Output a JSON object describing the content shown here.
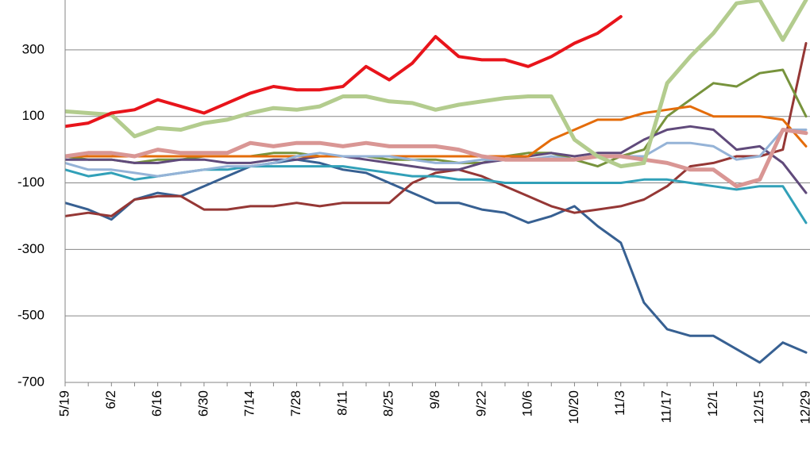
{
  "chart_data": {
    "type": "line",
    "categories": [
      "5/19",
      null,
      "6/2",
      null,
      "6/16",
      null,
      "6/30",
      null,
      "7/14",
      null,
      "7/28",
      null,
      "8/11",
      null,
      "8/25",
      null,
      "9/8",
      null,
      "9/22",
      null,
      "10/6",
      null,
      "10/20",
      null,
      "11/3",
      null,
      "11/17",
      null,
      "12/1",
      null,
      "12/15",
      null,
      "12/29"
    ],
    "ylim": [
      -700,
      450
    ],
    "yticks": [
      -700,
      -500,
      -300,
      -100,
      100,
      300
    ],
    "grid": true,
    "series": [
      {
        "color": "#376092",
        "width": 3,
        "values": [
          -160,
          -180,
          -210,
          -150,
          -130,
          -140,
          -110,
          -80,
          -50,
          -40,
          -30,
          -40,
          -60,
          -70,
          -100,
          -130,
          -160,
          -160,
          -180,
          -190,
          -220,
          -200,
          -170,
          -230,
          -280,
          -460,
          -540,
          -560,
          -560,
          -600,
          -640,
          -580,
          -610
        ]
      },
      {
        "color": "#953735",
        "width": 3,
        "values": [
          -200,
          -190,
          -200,
          -150,
          -140,
          -140,
          -180,
          -180,
          -170,
          -170,
          -160,
          -170,
          -160,
          -160,
          -160,
          -100,
          -70,
          -60,
          -80,
          -110,
          -140,
          -170,
          -190,
          -180,
          -170,
          -150,
          -110,
          -50,
          -40,
          -20,
          -20,
          0,
          320
        ]
      },
      {
        "color": "#77933c",
        "width": 3,
        "values": [
          -20,
          -30,
          -30,
          -40,
          -30,
          -30,
          -20,
          -20,
          -20,
          -10,
          -10,
          -20,
          -20,
          -20,
          -30,
          -30,
          -30,
          -40,
          -40,
          -20,
          -10,
          -10,
          -30,
          -50,
          -20,
          0,
          100,
          150,
          200,
          190,
          230,
          240,
          100
        ]
      },
      {
        "color": "#604a7b",
        "width": 3,
        "values": [
          -30,
          -30,
          -30,
          -40,
          -40,
          -30,
          -30,
          -40,
          -40,
          -30,
          -30,
          -20,
          -20,
          -30,
          -40,
          -50,
          -60,
          -60,
          -40,
          -30,
          -20,
          -10,
          -20,
          -10,
          -10,
          30,
          60,
          70,
          60,
          0,
          10,
          -40,
          -130
        ]
      },
      {
        "color": "#31a0b8",
        "width": 3,
        "values": [
          -60,
          -80,
          -70,
          -90,
          -80,
          -70,
          -60,
          -60,
          -50,
          -50,
          -50,
          -50,
          -50,
          -60,
          -70,
          -80,
          -80,
          -90,
          -90,
          -100,
          -100,
          -100,
          -100,
          -100,
          -100,
          -90,
          -90,
          -100,
          -110,
          -120,
          -110,
          -110,
          -220
        ]
      },
      {
        "color": "#e46c0a",
        "width": 3,
        "values": [
          -20,
          -20,
          -20,
          -20,
          -20,
          -20,
          -20,
          -20,
          -20,
          -20,
          -20,
          -20,
          -20,
          -20,
          -20,
          -20,
          -20,
          -20,
          -20,
          -20,
          -20,
          30,
          60,
          90,
          90,
          110,
          120,
          130,
          100,
          100,
          100,
          90,
          10
        ]
      },
      {
        "color": "#95b3d7",
        "width": 3,
        "values": [
          -40,
          -60,
          -60,
          -70,
          -80,
          -70,
          -60,
          -50,
          -50,
          -40,
          -20,
          -10,
          -20,
          -20,
          -20,
          -30,
          -40,
          -40,
          -30,
          -30,
          -30,
          -20,
          -30,
          -20,
          -20,
          -20,
          20,
          20,
          10,
          -30,
          -20,
          60,
          60
        ]
      },
      {
        "color": "#d99694",
        "width": 5,
        "values": [
          -20,
          -10,
          -10,
          -20,
          0,
          -10,
          -10,
          -10,
          20,
          10,
          20,
          20,
          10,
          20,
          10,
          10,
          10,
          0,
          -20,
          -30,
          -30,
          -30,
          -30,
          -20,
          -20,
          -30,
          -40,
          -60,
          -60,
          -110,
          -90,
          60,
          50
        ]
      },
      {
        "color": "#b3cc8e",
        "width": 5,
        "values": [
          115,
          110,
          105,
          40,
          65,
          60,
          80,
          90,
          110,
          125,
          120,
          130,
          160,
          160,
          145,
          140,
          120,
          135,
          145,
          155,
          160,
          160,
          30,
          -20,
          -50,
          -40,
          200,
          280,
          350,
          440,
          450,
          330,
          450
        ]
      },
      {
        "color": "#e8141b",
        "width": 4,
        "values": [
          70,
          80,
          110,
          120,
          150,
          130,
          110,
          140,
          170,
          190,
          180,
          180,
          190,
          250,
          210,
          260,
          340,
          280,
          270,
          270,
          250,
          280,
          320,
          350,
          400,
          null,
          null,
          null,
          null,
          null,
          null,
          null,
          null
        ]
      }
    ]
  }
}
